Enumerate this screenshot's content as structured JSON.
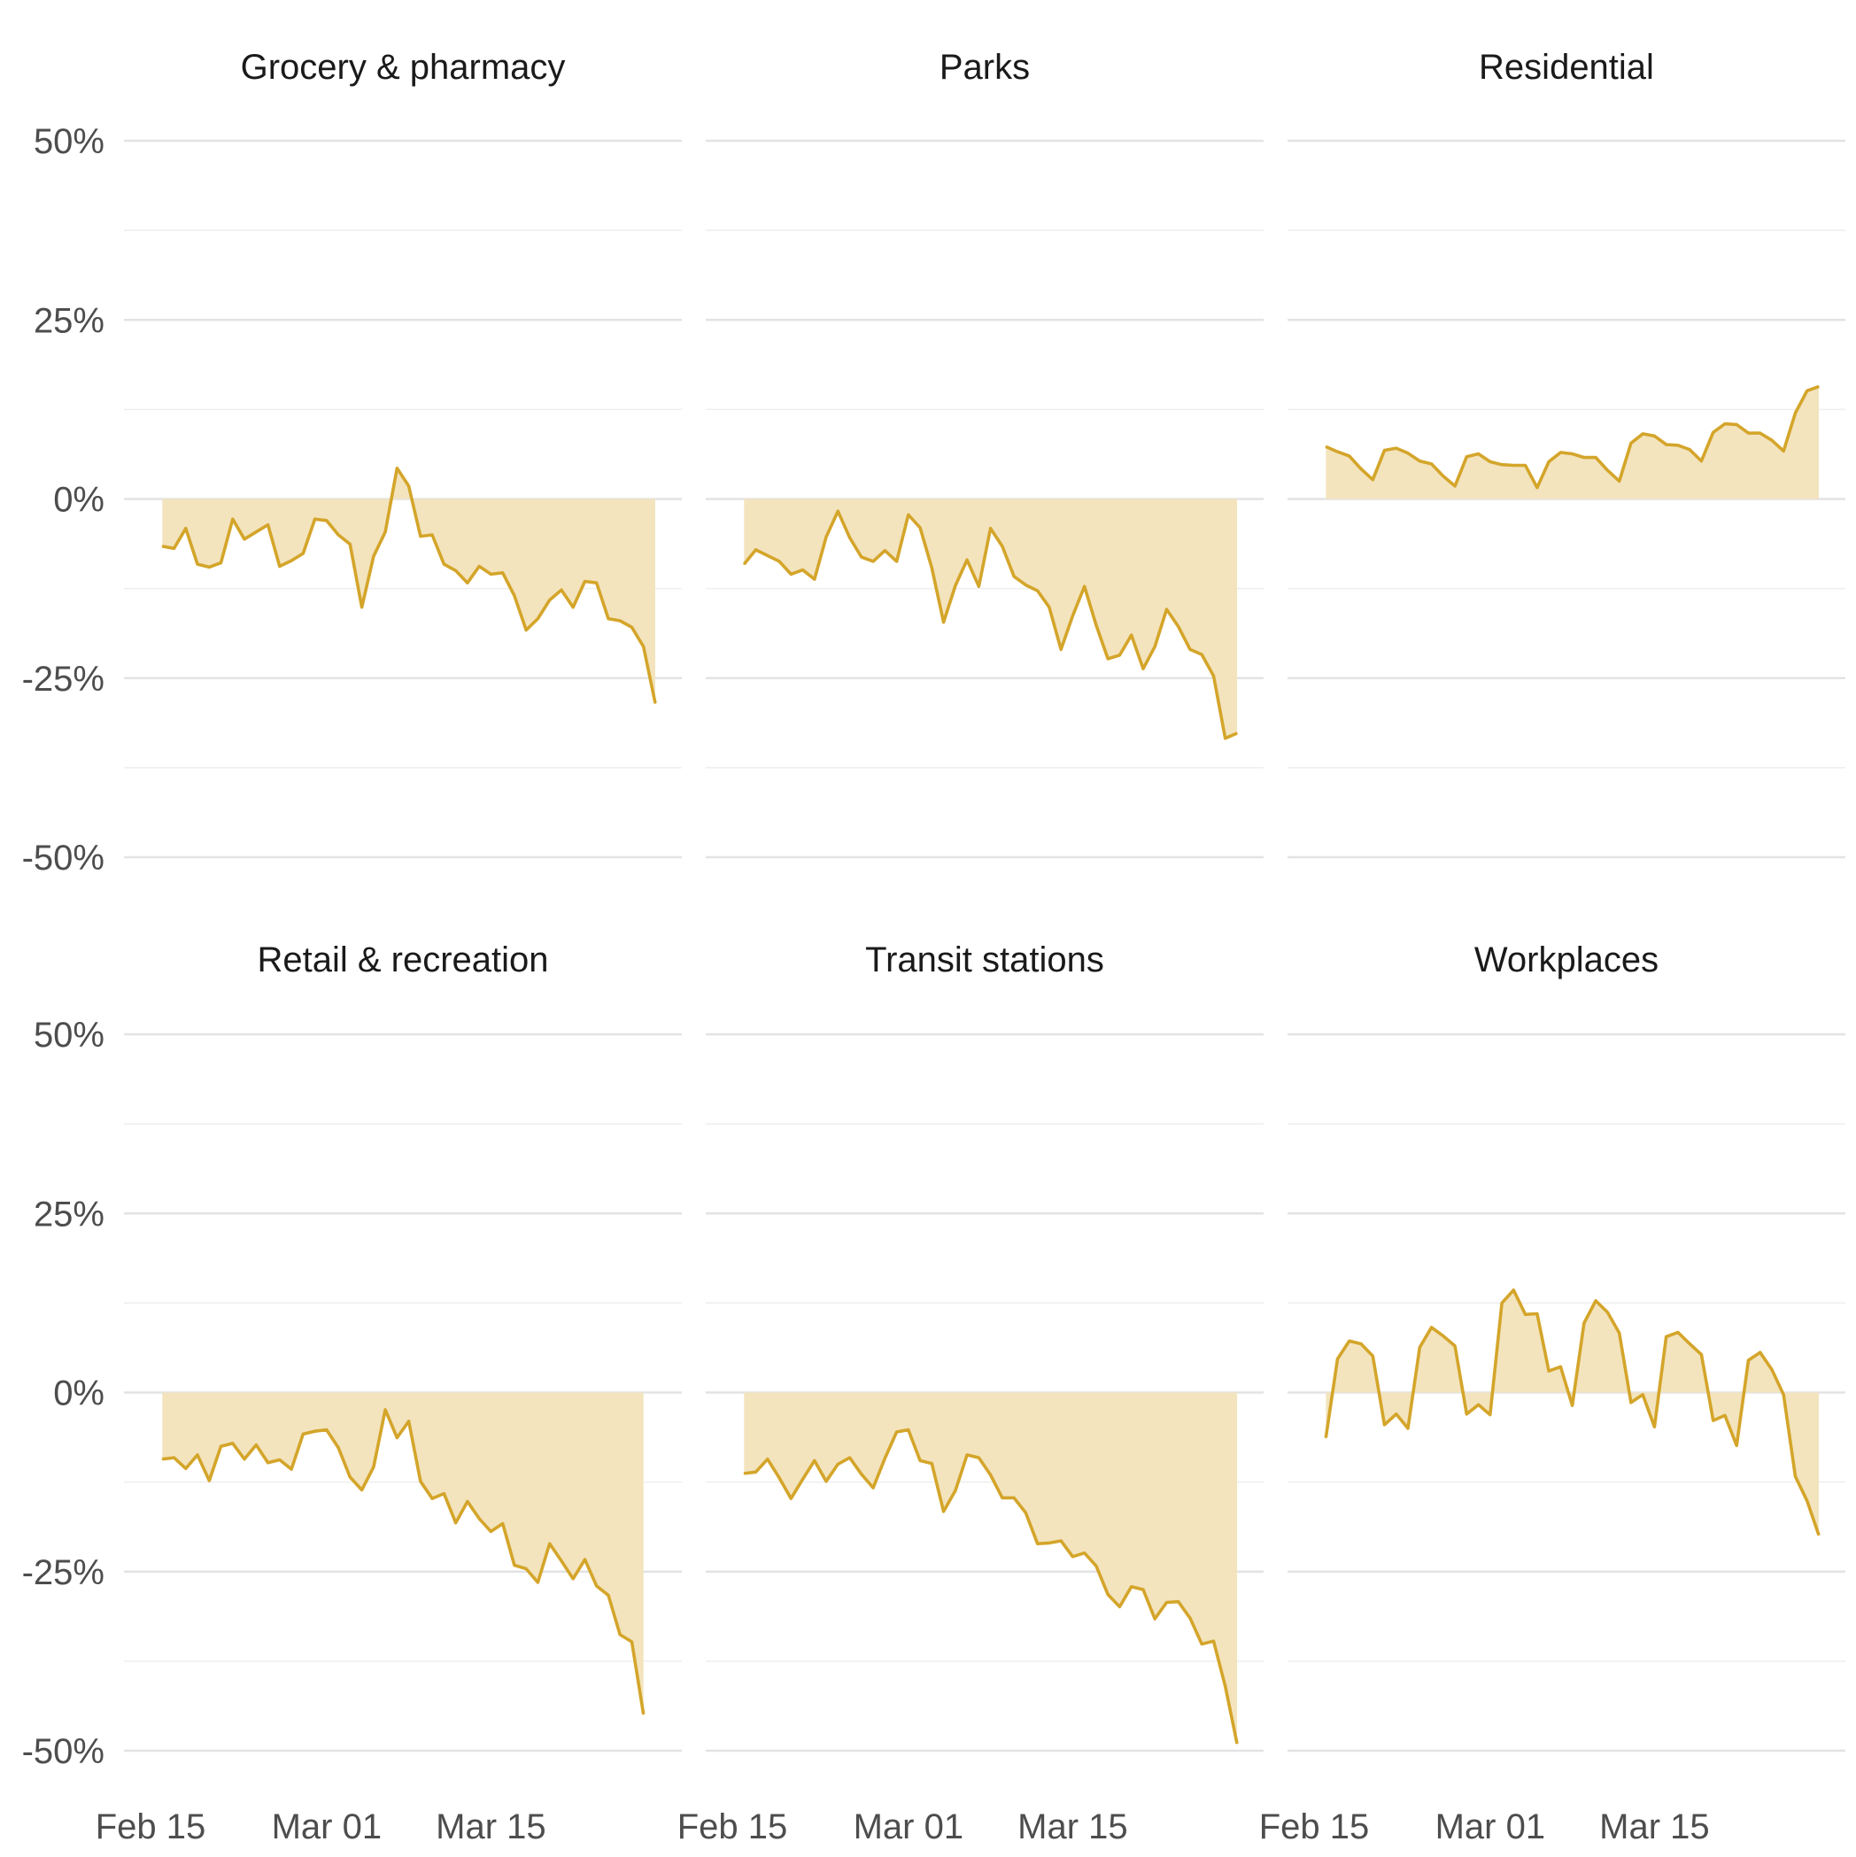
{
  "chart_data": {
    "type": "area",
    "layout": "faceted 2x3, shared axes",
    "y_axis": {
      "ylim": [
        -0.5,
        0.5
      ],
      "ticks": [
        -0.5,
        -0.25,
        0,
        0.25,
        0.5
      ],
      "tick_labels": [
        "-50%",
        "-25%",
        "0%",
        "25%",
        "50%"
      ]
    },
    "x_axis": {
      "start": "2020-02-15",
      "end": "2020-03-29",
      "ticks": [
        "2020-02-15",
        "2020-03-01",
        "2020-03-15"
      ],
      "tick_labels": [
        "Feb 15",
        "Mar 01",
        "Mar 15"
      ]
    },
    "grid": true,
    "colors": {
      "line": "#D4A52A",
      "fill": "#F2E3BB",
      "grid": "#E3E3E3",
      "text": "#4D4D4D",
      "title": "#1A1A1A"
    },
    "panels": [
      {
        "title": "Grocery & pharmacy",
        "start": "2020-02-16",
        "values": [
          -0.066,
          -0.069,
          -0.041,
          -0.091,
          -0.095,
          -0.089,
          -0.028,
          -0.056,
          -0.046,
          -0.036,
          -0.094,
          -0.086,
          -0.076,
          -0.028,
          -0.03,
          -0.05,
          -0.063,
          -0.151,
          -0.08,
          -0.046,
          0.043,
          0.018,
          -0.052,
          -0.05,
          -0.091,
          -0.1,
          -0.117,
          -0.094,
          -0.105,
          -0.103,
          -0.135,
          -0.183,
          -0.167,
          -0.141,
          -0.127,
          -0.151,
          -0.115,
          -0.117,
          -0.167,
          -0.17,
          -0.179,
          -0.206,
          -0.285
        ]
      },
      {
        "title": "Parks",
        "start": "2020-02-16",
        "values": [
          -0.091,
          -0.071,
          -0.079,
          -0.087,
          -0.105,
          -0.099,
          -0.112,
          -0.053,
          -0.017,
          -0.054,
          -0.081,
          -0.087,
          -0.072,
          -0.087,
          -0.022,
          -0.04,
          -0.096,
          -0.172,
          -0.121,
          -0.085,
          -0.122,
          -0.041,
          -0.066,
          -0.108,
          -0.12,
          -0.128,
          -0.151,
          -0.21,
          -0.163,
          -0.122,
          -0.176,
          -0.223,
          -0.218,
          -0.19,
          -0.237,
          -0.206,
          -0.154,
          -0.178,
          -0.21,
          -0.217,
          -0.247,
          -0.334,
          -0.327
        ]
      },
      {
        "title": "Residential",
        "start": "2020-02-16",
        "values": [
          0.073,
          0.066,
          0.06,
          0.042,
          0.027,
          0.068,
          0.071,
          0.064,
          0.053,
          0.049,
          0.032,
          0.018,
          0.059,
          0.063,
          0.052,
          0.048,
          0.047,
          0.047,
          0.016,
          0.052,
          0.065,
          0.063,
          0.058,
          0.058,
          0.04,
          0.025,
          0.078,
          0.091,
          0.088,
          0.076,
          0.075,
          0.069,
          0.053,
          0.093,
          0.105,
          0.104,
          0.092,
          0.092,
          0.082,
          0.067,
          0.12,
          0.151,
          0.157
        ]
      },
      {
        "title": "Retail & recreation",
        "start": "2020-02-16",
        "values": [
          -0.093,
          -0.091,
          -0.106,
          -0.087,
          -0.123,
          -0.075,
          -0.071,
          -0.093,
          -0.073,
          -0.098,
          -0.094,
          -0.107,
          -0.058,
          -0.054,
          -0.052,
          -0.077,
          -0.118,
          -0.136,
          -0.104,
          -0.024,
          -0.063,
          -0.04,
          -0.124,
          -0.148,
          -0.141,
          -0.182,
          -0.152,
          -0.176,
          -0.194,
          -0.183,
          -0.241,
          -0.246,
          -0.265,
          -0.211,
          -0.235,
          -0.26,
          -0.233,
          -0.27,
          -0.283,
          -0.338,
          -0.348,
          -0.449
        ]
      },
      {
        "title": "Transit stations",
        "start": "2020-02-16",
        "values": [
          -0.113,
          -0.111,
          -0.093,
          -0.119,
          -0.148,
          -0.121,
          -0.095,
          -0.124,
          -0.1,
          -0.091,
          -0.114,
          -0.133,
          -0.092,
          -0.055,
          -0.052,
          -0.095,
          -0.099,
          -0.166,
          -0.137,
          -0.087,
          -0.091,
          -0.115,
          -0.147,
          -0.147,
          -0.168,
          -0.211,
          -0.21,
          -0.207,
          -0.229,
          -0.224,
          -0.242,
          -0.282,
          -0.299,
          -0.271,
          -0.275,
          -0.316,
          -0.293,
          -0.292,
          -0.315,
          -0.351,
          -0.347,
          -0.41,
          -0.49
        ]
      },
      {
        "title": "Workplaces",
        "start": "2020-02-16",
        "values": [
          -0.063,
          0.047,
          0.072,
          0.068,
          0.051,
          -0.045,
          -0.03,
          -0.05,
          0.063,
          0.091,
          0.079,
          0.065,
          -0.03,
          -0.017,
          -0.031,
          0.125,
          0.143,
          0.109,
          0.11,
          0.03,
          0.036,
          -0.018,
          0.097,
          0.128,
          0.112,
          0.083,
          -0.014,
          -0.003,
          -0.048,
          0.078,
          0.084,
          0.068,
          0.053,
          -0.039,
          -0.032,
          -0.074,
          0.045,
          0.056,
          0.032,
          -0.003,
          -0.117,
          -0.151,
          -0.199
        ]
      }
    ]
  }
}
